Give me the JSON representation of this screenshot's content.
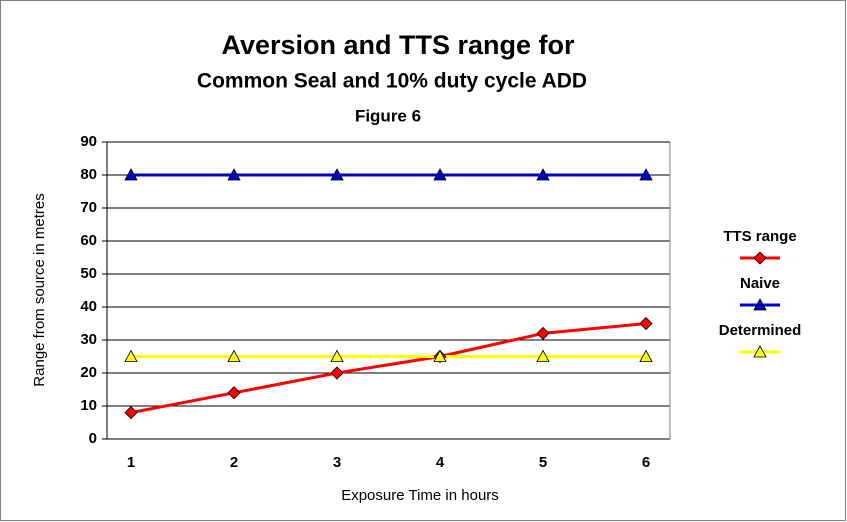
{
  "chart_data": {
    "type": "line",
    "title": [
      "Aversion and TTS range for",
      "Common Seal and 10% duty cycle ADD"
    ],
    "subtitle": "Figure 6",
    "x_label": "Exposure Time in hours",
    "y_label": "Range from source in metres",
    "categories": [
      "1",
      "2",
      "3",
      "4",
      "5",
      "6"
    ],
    "series": [
      {
        "name": "TTS range",
        "color": "#ff0000",
        "marker": "diamond",
        "values": [
          8,
          14,
          20,
          25,
          32,
          35
        ]
      },
      {
        "name": "Naive",
        "color": "#0000cc",
        "marker": "triangle",
        "values": [
          80,
          80,
          80,
          80,
          80,
          80
        ]
      },
      {
        "name": "Determined",
        "color": "#ffff00",
        "marker": "triangle",
        "values": [
          25,
          25,
          25,
          25,
          25,
          25
        ]
      }
    ],
    "ylim": [
      0,
      90
    ],
    "yticks": [
      0,
      10,
      20,
      30,
      40,
      50,
      60,
      70,
      80,
      90
    ],
    "grid": true,
    "legend": "right"
  }
}
